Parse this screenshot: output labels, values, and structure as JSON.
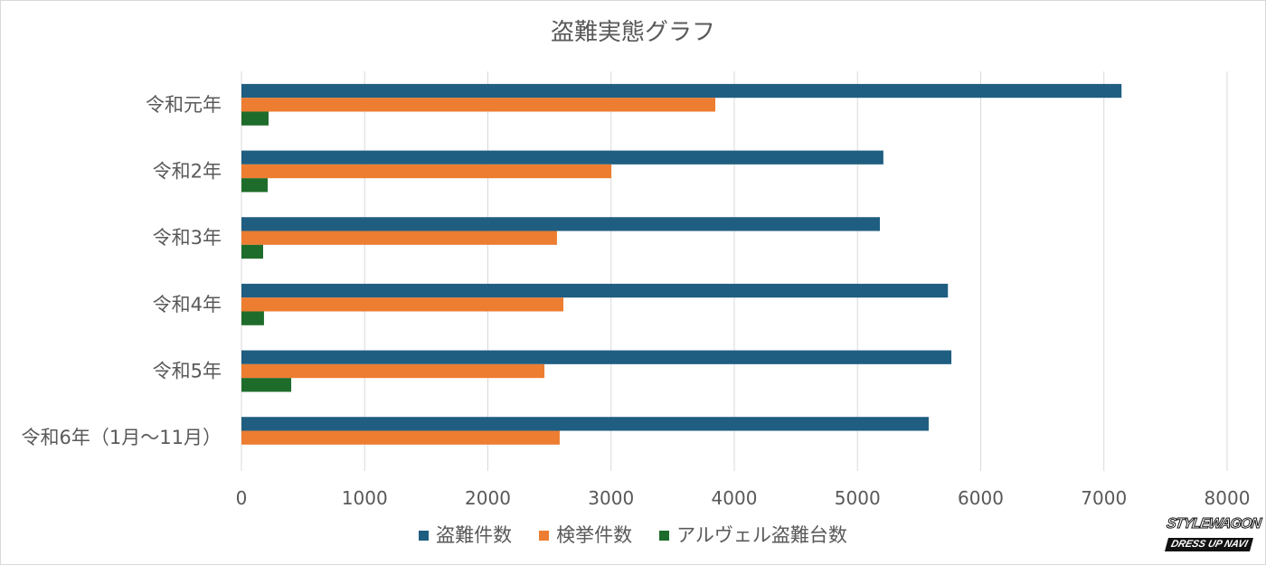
{
  "chart_data": {
    "type": "bar",
    "orientation": "horizontal",
    "title": "盗難実態グラフ",
    "categories": [
      "令和元年",
      "令和2年",
      "令和3年",
      "令和4年",
      "令和5年",
      "令和6年（1月～11月）"
    ],
    "series": [
      {
        "name": "盗難件数",
        "color": "#1f5e81",
        "values": [
          7143,
          5210,
          5182,
          5734,
          5762,
          5578
        ]
      },
      {
        "name": "検挙件数",
        "color": "#ed7d31",
        "values": [
          3846,
          3002,
          2561,
          2613,
          2459,
          2583
        ]
      },
      {
        "name": "アルヴェル盗難台数",
        "color": "#1e6c2b",
        "values": [
          220,
          213,
          176,
          183,
          404,
          null
        ]
      }
    ],
    "xlim": [
      0,
      8000
    ],
    "xticks": [
      0,
      1000,
      2000,
      3000,
      4000,
      5000,
      6000,
      7000,
      8000
    ],
    "xlabel": "",
    "ylabel": "",
    "grid": true,
    "legend": "bottom-center",
    "gridColor": "#d9d9d9"
  },
  "logo": {
    "top": "STYLEWAGON",
    "bottom": "DRESS UP NAVI"
  }
}
